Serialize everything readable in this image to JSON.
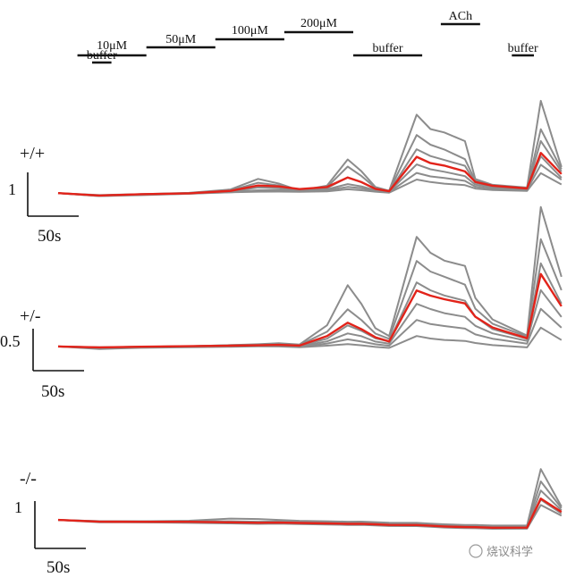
{
  "chart_data": {
    "type": "line",
    "stimuli": [
      {
        "label": "buffer",
        "start": 0,
        "end": 28
      },
      {
        "label": "10μM",
        "start": 28,
        "end": 128
      },
      {
        "label": "50μM",
        "start": 128,
        "end": 228
      },
      {
        "label": "100μM",
        "start": 228,
        "end": 328
      },
      {
        "label": "200μM",
        "start": 328,
        "end": 428
      },
      {
        "label": "buffer",
        "start": 428,
        "end": 528
      },
      {
        "label": "ACh",
        "start": 555,
        "end": 612
      },
      {
        "label": "buffer",
        "start": 658,
        "end": 690
      }
    ],
    "panels": [
      {
        "genotype": "+/+",
        "scale_bar_value": "1",
        "time_scale": "50s",
        "baseline": 0,
        "mean_trace": {
          "x": [
            0,
            60,
            120,
            190,
            250,
            290,
            320,
            350,
            390,
            420,
            440,
            460,
            480,
            520,
            540,
            560,
            590,
            605,
            630,
            680,
            700,
            730
          ],
          "y": [
            0,
            -0.05,
            -0.02,
            0,
            0.05,
            0.16,
            0.14,
            0.08,
            0.12,
            0.32,
            0.22,
            0.08,
            0.03,
            0.76,
            0.63,
            0.58,
            0.46,
            0.24,
            0.16,
            0.1,
            0.85,
            0.4
          ]
        },
        "gray_traces": [
          [
            0,
            -0.04,
            -0.02,
            0.01,
            0.08,
            0.3,
            0.2,
            0.05,
            0.15,
            0.7,
            0.45,
            0.12,
            0.04,
            1.65,
            1.35,
            1.28,
            1.1,
            0.3,
            0.18,
            0.12,
            1.95,
            0.55
          ],
          [
            0,
            -0.05,
            -0.03,
            0,
            0.06,
            0.22,
            0.16,
            0.06,
            0.12,
            0.55,
            0.35,
            0.1,
            0.03,
            1.22,
            1.02,
            0.92,
            0.72,
            0.26,
            0.17,
            0.1,
            1.35,
            0.5
          ],
          [
            0,
            -0.05,
            -0.02,
            0,
            0.04,
            0.12,
            0.11,
            0.05,
            0.1,
            0.32,
            0.22,
            0.07,
            0.02,
            0.92,
            0.78,
            0.7,
            0.58,
            0.22,
            0.15,
            0.09,
            1.1,
            0.45
          ],
          [
            0,
            -0.06,
            -0.03,
            -0.01,
            0.03,
            0.06,
            0.07,
            0.04,
            0.07,
            0.18,
            0.13,
            0.05,
            0.02,
            0.6,
            0.5,
            0.45,
            0.36,
            0.18,
            0.13,
            0.08,
            0.78,
            0.32
          ],
          [
            0,
            -0.05,
            -0.03,
            0,
            0.02,
            0.05,
            0.05,
            0.03,
            0.05,
            0.12,
            0.09,
            0.04,
            0.01,
            0.42,
            0.35,
            0.32,
            0.26,
            0.14,
            0.1,
            0.07,
            0.6,
            0.28
          ],
          [
            0,
            -0.06,
            -0.04,
            -0.01,
            0.02,
            0.03,
            0.03,
            0.02,
            0.03,
            0.07,
            0.05,
            0.02,
            0,
            0.28,
            0.23,
            0.2,
            0.17,
            0.1,
            0.07,
            0.05,
            0.42,
            0.18
          ]
        ]
      },
      {
        "genotype": "+/-",
        "scale_bar_value": "0.5",
        "time_scale": "50s",
        "baseline": 0,
        "mean_trace": {
          "x": [
            0,
            60,
            120,
            190,
            250,
            290,
            320,
            350,
            390,
            420,
            440,
            460,
            480,
            520,
            540,
            560,
            590,
            605,
            630,
            680,
            700,
            730
          ],
          "y": [
            0,
            -0.02,
            -0.01,
            0,
            0.01,
            0.02,
            0.03,
            0.02,
            0.2,
            0.45,
            0.33,
            0.18,
            0.1,
            1.05,
            0.95,
            0.88,
            0.8,
            0.55,
            0.35,
            0.15,
            1.35,
            0.75
          ]
        },
        "gray_traces": [
          [
            0,
            -0.02,
            -0.01,
            0,
            0.02,
            0.04,
            0.06,
            0.04,
            0.4,
            1.15,
            0.8,
            0.35,
            0.2,
            2.05,
            1.75,
            1.6,
            1.5,
            0.9,
            0.5,
            0.2,
            2.6,
            1.3
          ],
          [
            0,
            -0.02,
            -0.01,
            0,
            0.02,
            0.03,
            0.04,
            0.03,
            0.28,
            0.7,
            0.5,
            0.25,
            0.15,
            1.6,
            1.4,
            1.3,
            1.15,
            0.7,
            0.42,
            0.18,
            2.0,
            1.05
          ],
          [
            0,
            -0.03,
            -0.02,
            0,
            0.01,
            0.02,
            0.03,
            0.02,
            0.15,
            0.4,
            0.3,
            0.16,
            0.1,
            1.2,
            1.05,
            0.95,
            0.85,
            0.55,
            0.32,
            0.14,
            1.55,
            0.8
          ],
          [
            0,
            -0.03,
            -0.02,
            -0.01,
            0,
            0.01,
            0.02,
            0.01,
            0.1,
            0.25,
            0.2,
            0.1,
            0.06,
            0.8,
            0.7,
            0.62,
            0.55,
            0.38,
            0.24,
            0.1,
            1.05,
            0.55
          ],
          [
            0,
            -0.04,
            -0.02,
            -0.01,
            0,
            0.01,
            0.01,
            0,
            0.06,
            0.14,
            0.1,
            0.05,
            0.02,
            0.5,
            0.42,
            0.38,
            0.33,
            0.22,
            0.14,
            0.05,
            0.7,
            0.35
          ],
          [
            0,
            -0.05,
            -0.03,
            -0.02,
            -0.01,
            0,
            0,
            -0.01,
            0.02,
            0.05,
            0.03,
            0,
            -0.02,
            0.2,
            0.15,
            0.12,
            0.1,
            0.06,
            0.02,
            -0.02,
            0.35,
            0.12
          ]
        ]
      },
      {
        "genotype": "-/-",
        "scale_bar_value": "1",
        "time_scale": "50s",
        "baseline": 0,
        "mean_trace": {
          "x": [
            0,
            60,
            120,
            190,
            250,
            290,
            320,
            350,
            390,
            420,
            440,
            460,
            480,
            520,
            540,
            560,
            590,
            605,
            630,
            680,
            700,
            730
          ],
          "y": [
            0,
            -0.03,
            -0.03,
            -0.03,
            -0.04,
            -0.05,
            -0.05,
            -0.06,
            -0.07,
            -0.08,
            -0.08,
            -0.09,
            -0.1,
            -0.1,
            -0.11,
            -0.12,
            -0.13,
            -0.13,
            -0.14,
            -0.14,
            0.4,
            0.15
          ]
        },
        "gray_traces": [
          [
            0,
            -0.02,
            -0.02,
            -0.01,
            0.03,
            0.02,
            0,
            -0.02,
            -0.03,
            -0.04,
            -0.04,
            -0.05,
            -0.06,
            -0.06,
            -0.07,
            -0.08,
            -0.09,
            -0.09,
            -0.1,
            -0.1,
            0.95,
            0.25
          ],
          [
            0,
            -0.02,
            -0.02,
            -0.02,
            -0.02,
            -0.03,
            -0.03,
            -0.04,
            -0.04,
            -0.05,
            -0.05,
            -0.06,
            -0.07,
            -0.07,
            -0.08,
            -0.09,
            -0.1,
            -0.1,
            -0.11,
            -0.11,
            0.72,
            0.22
          ],
          [
            0,
            -0.03,
            -0.03,
            -0.03,
            -0.04,
            -0.05,
            -0.05,
            -0.06,
            -0.06,
            -0.07,
            -0.07,
            -0.08,
            -0.09,
            -0.09,
            -0.1,
            -0.11,
            -0.12,
            -0.12,
            -0.13,
            -0.13,
            0.55,
            0.18
          ],
          [
            0,
            -0.03,
            -0.04,
            -0.04,
            -0.05,
            -0.06,
            -0.06,
            -0.07,
            -0.08,
            -0.09,
            -0.09,
            -0.1,
            -0.11,
            -0.11,
            -0.12,
            -0.13,
            -0.14,
            -0.14,
            -0.15,
            -0.15,
            0.38,
            0.12
          ],
          [
            0,
            -0.04,
            -0.04,
            -0.05,
            -0.06,
            -0.07,
            -0.07,
            -0.08,
            -0.09,
            -0.1,
            -0.1,
            -0.11,
            -0.12,
            -0.12,
            -0.13,
            -0.14,
            -0.15,
            -0.15,
            -0.16,
            -0.16,
            0.28,
            0.08
          ]
        ]
      }
    ]
  },
  "watermark": "烧议科学"
}
